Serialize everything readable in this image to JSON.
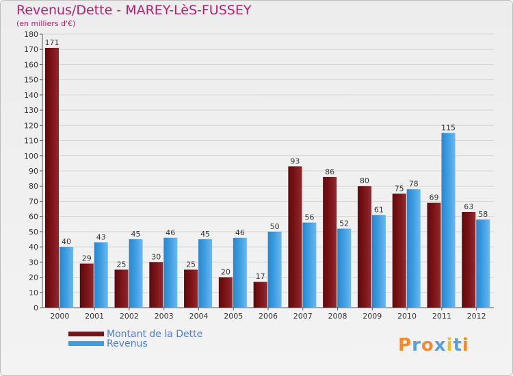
{
  "title": "Revenus/Dette - MAREY-LèS-FUSSEY",
  "subtitle": "(en milliers d'€)",
  "logo": {
    "text": "Proxiti",
    "letter_colors": [
      "#f08c2a",
      "#5aa0d8",
      "#f08c2a",
      "#5aa0d8",
      "#f0c020",
      "#5aa0d8",
      "#f08c2a"
    ]
  },
  "colors": {
    "dette": "#7a1216",
    "revenus": "#3f9ee2",
    "axis": "#555555",
    "grid": "#d6d6d6",
    "label": "#333333"
  },
  "chart_data": {
    "type": "bar",
    "title": "Revenus/Dette - MAREY-LèS-FUSSEY",
    "ylabel": "(en milliers d'€)",
    "xlabel": "",
    "ylim": [
      0,
      180
    ],
    "ytick_step": 10,
    "categories": [
      "2000",
      "2001",
      "2002",
      "2003",
      "2004",
      "2005",
      "2006",
      "2007",
      "2008",
      "2009",
      "2010",
      "2011",
      "2012"
    ],
    "series": [
      {
        "name": "Montant de la Dette",
        "values": [
          171,
          29,
          25,
          30,
          25,
          20,
          17,
          93,
          86,
          80,
          75,
          69,
          63
        ]
      },
      {
        "name": "Revenus",
        "values": [
          40,
          43,
          45,
          46,
          45,
          46,
          50,
          56,
          52,
          61,
          78,
          115,
          58
        ]
      }
    ],
    "legend_position": "bottom-left",
    "grid": true
  }
}
